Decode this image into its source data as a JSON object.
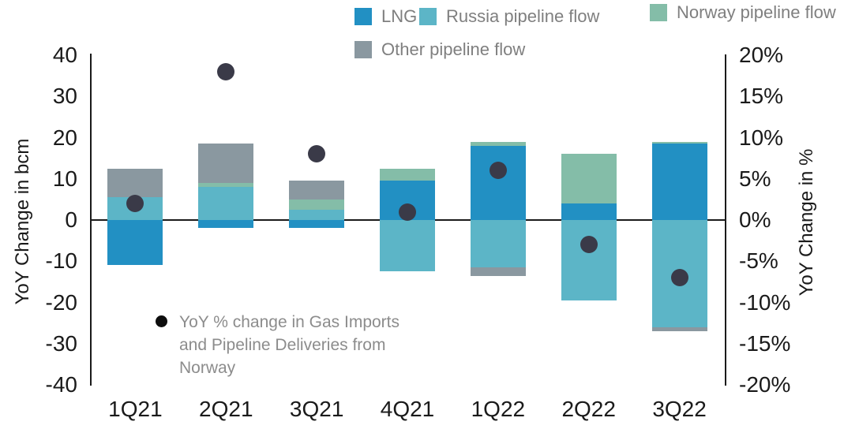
{
  "legend": {
    "items": [
      {
        "label": "LNG",
        "color": "#2290c3"
      },
      {
        "label": "Russia pipeline flow",
        "color": "#5cb5c7"
      },
      {
        "label": "Norway pipeline flow",
        "color": "#84bda8"
      },
      {
        "label": "Other pipeline flow",
        "color": "#8a98a0"
      }
    ]
  },
  "axes": {
    "left_title": "YoY Change in bcm",
    "right_title": "YoY Change in %",
    "left_ticks": [
      "40",
      "30",
      "20",
      "10",
      "0",
      "-10",
      "-20",
      "-30",
      "-40"
    ],
    "right_ticks": [
      "20%",
      "15%",
      "10%",
      "5%",
      "0%",
      "-5%",
      "-10%",
      "-15%",
      "-20%"
    ]
  },
  "annotation": {
    "marker_color": "#0d0d0d",
    "lines": [
      "YoY % change in Gas Imports",
      "and Pipeline Deliveries from",
      "Norway"
    ]
  },
  "chart_data": {
    "type": "bar",
    "subtype": "stacked-bar-with-scatter-overlay",
    "categories": [
      "1Q21",
      "2Q21",
      "3Q21",
      "4Q21",
      "1Q22",
      "2Q22",
      "3Q22"
    ],
    "series": [
      {
        "name": "LNG",
        "color": "#2290c3",
        "values_bcm": [
          -11,
          -2,
          -2,
          9.5,
          18,
          4,
          18.5
        ]
      },
      {
        "name": "Russia pipeline flow",
        "color": "#5cb5c7",
        "values_bcm": [
          5.5,
          8,
          2.5,
          -12.5,
          -11.5,
          -19.5,
          -26
        ]
      },
      {
        "name": "Norway pipeline flow",
        "color": "#84bda8",
        "values_bcm": [
          0,
          1,
          2.5,
          3,
          1,
          12,
          0.5
        ]
      },
      {
        "name": "Other pipeline flow",
        "color": "#8a98a0",
        "values_bcm": [
          7,
          9.5,
          4.5,
          0,
          -2,
          0,
          -1
        ]
      }
    ],
    "dots": {
      "name": "YoY % change in Gas Imports and Pipeline Deliveries from Norway",
      "color": "#3a3a48",
      "values_pct": [
        2,
        18,
        8,
        1,
        6,
        -3,
        -7
      ]
    },
    "left_axis": {
      "label": "YoY Change in bcm",
      "range": [
        -40,
        40
      ],
      "tick_step": 10
    },
    "right_axis": {
      "label": "YoY Change in %",
      "range": [
        -20,
        20
      ],
      "tick_step": 5
    },
    "grid": "zero-line-only",
    "legend_position": "top"
  }
}
